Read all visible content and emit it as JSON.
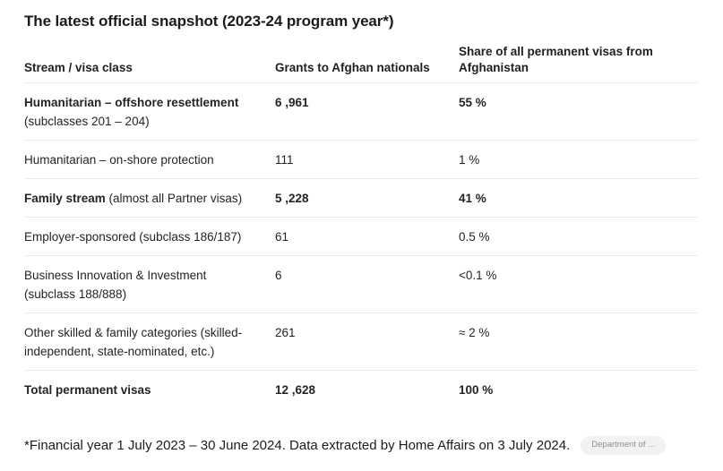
{
  "title": "The latest official snapshot (2023-24 program year*)",
  "table": {
    "headers": [
      "Stream / visa class",
      "Grants to Afghan nationals",
      "Share of all permanent visas from Afghanistan"
    ],
    "rows": [
      {
        "name_bold": "Humanitarian – offshore resettlement",
        "name_regular": "",
        "name_line2": "(subclasses 201 – 204)",
        "grants": "6 ,961",
        "share": "55 %"
      },
      {
        "name_bold": "",
        "name_regular": "Humanitarian – on-shore protection",
        "name_line2": "",
        "grants": "111",
        "share": "1 %"
      },
      {
        "name_bold": "Family stream",
        "name_regular": " (almost all Partner visas)",
        "name_line2": "",
        "grants": "5 ,228",
        "share": "41 %"
      },
      {
        "name_bold": "",
        "name_regular": "Employer-sponsored (subclass 186/187)",
        "name_line2": "",
        "grants": "61",
        "share": "0.5 %"
      },
      {
        "name_bold": "",
        "name_regular": "Business Innovation & Investment",
        "name_line2": "(subclass 188/888)",
        "grants": "6",
        "share": "<0.1 %"
      },
      {
        "name_bold": "",
        "name_regular": "Other skilled & family categories (skilled-",
        "name_line2": "independent, state-nominated, etc.)",
        "grants": "261",
        "share": "≈ 2 %"
      },
      {
        "name_bold": "Total permanent visas",
        "name_regular": "",
        "name_line2": "",
        "grants": "12 ,628",
        "share": "100 %"
      }
    ]
  },
  "footer": {
    "note": "*Financial year 1 July 2023 – 30 June 2024. Data extracted by Home Affairs on 3 July 2024.",
    "badge": "Department of ..."
  },
  "colors": {
    "background": "#ffffff",
    "text": "#1f1f1f",
    "divider": "#ececec",
    "badge_bg": "#f2f2f2",
    "badge_text": "#8f8f8f"
  }
}
